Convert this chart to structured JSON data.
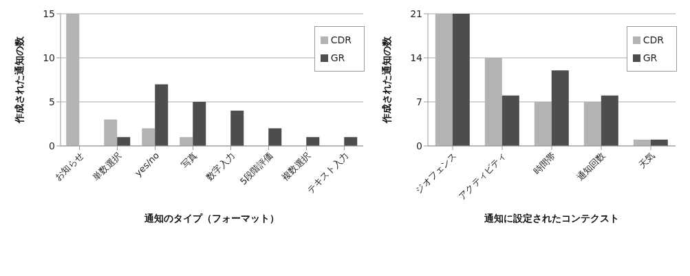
{
  "chart_data": [
    {
      "type": "bar",
      "xlabel": "通知のタイプ（フォーマット）",
      "ylabel": "作成された通知の数",
      "categories": [
        "お知らせ",
        "単数選択",
        "yes/no",
        "写真",
        "数字入力",
        "5段階評価",
        "複数選択",
        "テキスト入力"
      ],
      "series": [
        {
          "name": "CDR",
          "color": "#b3b3b3",
          "values": [
            15,
            3,
            2,
            1,
            0,
            0,
            0,
            0
          ]
        },
        {
          "name": "GR",
          "color": "#4d4d4d",
          "values": [
            0,
            1,
            7,
            5,
            4,
            2,
            1,
            1
          ]
        }
      ],
      "ylim": [
        0,
        15
      ],
      "yticks": [
        0,
        5,
        10,
        15
      ],
      "grid": "y",
      "legend": "top right"
    },
    {
      "type": "bar",
      "xlabel": "通知に設定されたコンテクスト",
      "ylabel": "作成された通知の数",
      "categories": [
        "ジオフェンス",
        "アクティビティ",
        "時間帯",
        "通知回数",
        "天気"
      ],
      "series": [
        {
          "name": "CDR",
          "color": "#b3b3b3",
          "values": [
            21,
            14,
            7,
            7,
            1
          ]
        },
        {
          "name": "GR",
          "color": "#4d4d4d",
          "values": [
            21,
            8,
            12,
            8,
            1
          ]
        }
      ],
      "ylim": [
        0,
        21
      ],
      "yticks": [
        0,
        7,
        14,
        21
      ],
      "grid": "y",
      "legend": "top right"
    }
  ]
}
